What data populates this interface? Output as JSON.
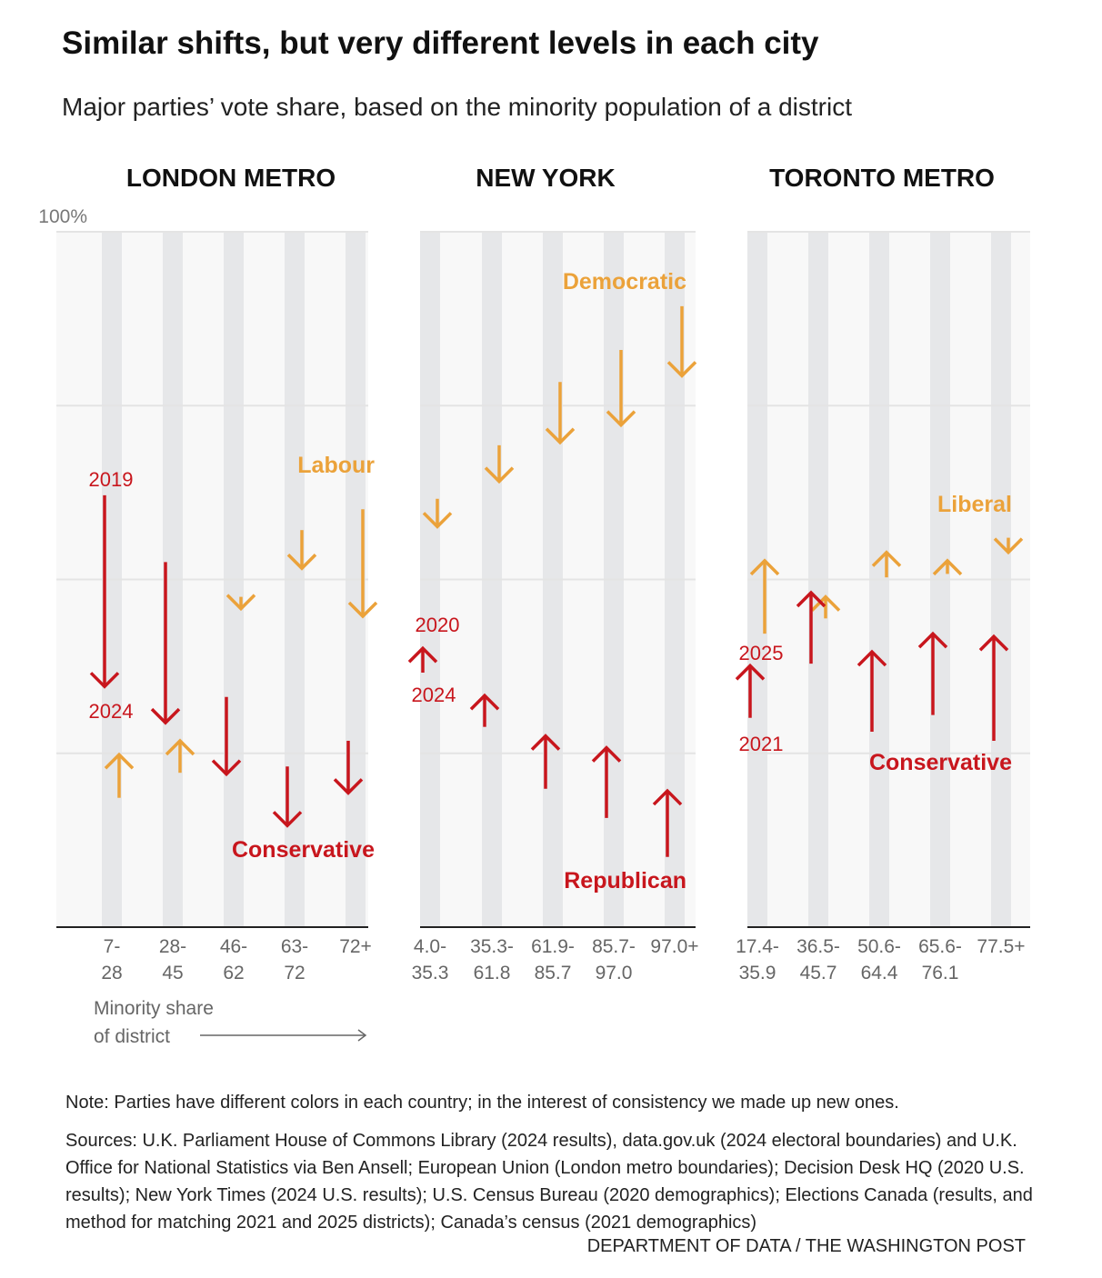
{
  "title": "Similar shifts, but very different levels in each city",
  "subtitle": "Major parties’ vote share, based on the minority population of a district",
  "note": "Note: Parties have different colors in each country; in the interest of consistency we made up new ones.",
  "sources": "Sources: U.K. Parliament House of Commons Library (2024 results), data.gov.uk (2024 electoral boundaries) and U.K. Office for National Statistics via Ben Ansell; European Union (London metro boundaries); Decision Desk HQ (2020 U.S. results); New York Times (2024 U.S. results); U.S. Census Bureau (2020 demographics); Elections Canada (results, and method for matching 2021 and 2025 districts); Canada’s census (2021 demographics)",
  "credit": "DEPARTMENT OF DATA / THE WASHINGTON POST",
  "colors": {
    "red": "#c8161d",
    "orange": "#eba23a",
    "band": "#e6e7e9",
    "bg": "#f8f8f8"
  },
  "chart_data": {
    "type": "arrow",
    "ylim": [
      0,
      100
    ],
    "yticks": [
      "0",
      "25",
      "50",
      "75",
      "100%"
    ],
    "ytick_values": [
      0,
      25,
      50,
      75,
      100
    ],
    "xlabel": "Minority share of district",
    "panels": [
      {
        "title": "LONDON METRO",
        "from_label": "2019",
        "to_label": "2024",
        "categories": [
          [
            "7-",
            "28"
          ],
          [
            "28-",
            "45"
          ],
          [
            "46-",
            "62"
          ],
          [
            "63-",
            "72"
          ],
          [
            "72+",
            ""
          ]
        ],
        "series": [
          {
            "name": "Labour",
            "color": "orange",
            "from": [
              18.6,
              22.2,
              47.5,
              57.1,
              60.1
            ],
            "to": [
              24.8,
              26.8,
              45.8,
              51.6,
              44.7
            ]
          },
          {
            "name": "Conservative",
            "color": "red",
            "from": [
              62.1,
              52.5,
              33.1,
              23.1,
              26.8
            ],
            "to": [
              34.6,
              29.4,
              22.0,
              14.6,
              19.3
            ]
          }
        ]
      },
      {
        "title": "NEW YORK",
        "from_label": "2020",
        "to_label": "2024",
        "categories": [
          [
            "4.0-",
            "35.3"
          ],
          [
            "35.3-",
            "61.8"
          ],
          [
            "61.9-",
            "85.7"
          ],
          [
            "85.7-",
            "97.0"
          ],
          [
            "97.0+",
            ""
          ]
        ],
        "series": [
          {
            "name": "Democratic",
            "color": "orange",
            "from": [
              61.6,
              69.3,
              78.4,
              83.0,
              89.3
            ],
            "to": [
              57.6,
              64.1,
              69.7,
              72.2,
              79.3
            ]
          },
          {
            "name": "Republican",
            "color": "red",
            "from": [
              36.6,
              28.8,
              19.9,
              15.7,
              10.1
            ],
            "to": [
              40.1,
              33.3,
              27.5,
              25.8,
              19.6
            ]
          }
        ]
      },
      {
        "title": "TORONTO METRO",
        "from_label": "2021",
        "to_label": "2025",
        "categories": [
          [
            "17.4-",
            "35.9"
          ],
          [
            "36.5-",
            "45.7"
          ],
          [
            "50.6-",
            "64.4"
          ],
          [
            "65.6-",
            "76.1"
          ],
          [
            "77.5+",
            ""
          ]
        ],
        "series": [
          {
            "name": "Liberal",
            "color": "orange",
            "from": [
              42.2,
              44.4,
              50.3,
              50.8,
              56.0
            ],
            "to": [
              52.7,
              47.5,
              53.9,
              52.7,
              53.9
            ]
          },
          {
            "name": "Conservative",
            "color": "red",
            "from": [
              30.1,
              37.9,
              28.1,
              30.5,
              26.8
            ],
            "to": [
              37.6,
              48.1,
              39.6,
              42.2,
              41.8
            ]
          }
        ]
      }
    ],
    "xlabel_lines": [
      "Minority share",
      "of district"
    ]
  }
}
